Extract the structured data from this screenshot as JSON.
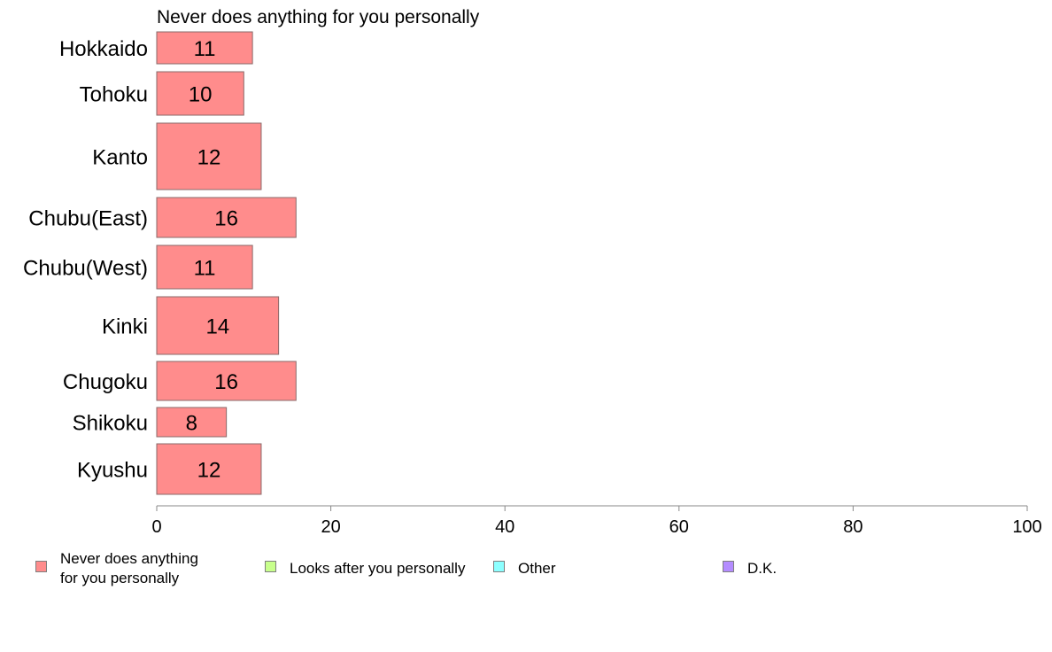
{
  "chart_data": {
    "type": "bar",
    "orientation": "horizontal",
    "title": "Never does anything for you personally",
    "categories": [
      "Hokkaido",
      "Tohoku",
      "Kanto",
      "Chubu(East)",
      "Chubu(West)",
      "Kinki",
      "Chugoku",
      "Shikoku",
      "Kyushu"
    ],
    "series": [
      {
        "name": "Never does anything for you personally",
        "color": "#ff8c8c",
        "values": [
          11,
          10,
          12,
          16,
          11,
          14,
          16,
          8,
          12
        ],
        "labels": [
          "11",
          "10",
          "12",
          "16",
          "11",
          "14",
          "16",
          "8",
          "12"
        ]
      }
    ],
    "xlim": [
      0,
      100
    ],
    "xticks": [
      "0",
      "20",
      "40",
      "60",
      "80",
      "100"
    ],
    "xlabel": "",
    "ylabel": "",
    "grid": false,
    "legend_position": "bottom"
  },
  "legend": [
    {
      "label": "Never does anything\nfor you personally",
      "color": "#ff8c8c"
    },
    {
      "label": "Looks after you personally",
      "color": "#c8ff8c"
    },
    {
      "label": "Other",
      "color": "#8cffff"
    },
    {
      "label": "D.K.",
      "color": "#b48cff"
    }
  ]
}
